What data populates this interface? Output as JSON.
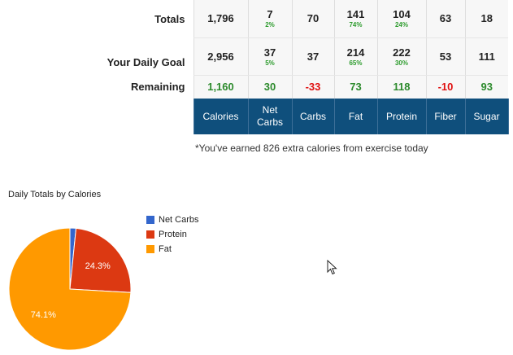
{
  "rows": {
    "totals": {
      "label": "Totals",
      "values": [
        "1,796",
        "7",
        "70",
        "141",
        "104",
        "63",
        "18"
      ],
      "pcts": [
        "",
        "2%",
        "",
        "74%",
        "24%",
        "",
        ""
      ]
    },
    "goal": {
      "label": "Your Daily Goal",
      "values": [
        "2,956",
        "37",
        "37",
        "214",
        "222",
        "53",
        "111"
      ],
      "pcts": [
        "",
        "5%",
        "",
        "65%",
        "30%",
        "",
        ""
      ]
    },
    "remaining": {
      "label": "Remaining",
      "values": [
        "1,160",
        "30",
        "-33",
        "73",
        "118",
        "-10",
        "93"
      ]
    }
  },
  "columns": [
    "Calories",
    "Net Carbs",
    "Carbs",
    "Fat",
    "Protein",
    "Fiber",
    "Sugar"
  ],
  "note": "*You've earned 826 extra calories from exercise today",
  "chart_data": {
    "type": "pie",
    "title": "Daily Totals by Calories",
    "series": [
      {
        "name": "Net Carbs",
        "value": 1.6,
        "color": "#3366cc"
      },
      {
        "name": "Protein",
        "value": 24.3,
        "color": "#dc3912"
      },
      {
        "name": "Fat",
        "value": 74.1,
        "color": "#ff9900"
      }
    ],
    "slice_labels": [
      "",
      "24.3%",
      "74.1%"
    ]
  },
  "icons": {
    "cursor": "mouse-pointer-icon"
  }
}
